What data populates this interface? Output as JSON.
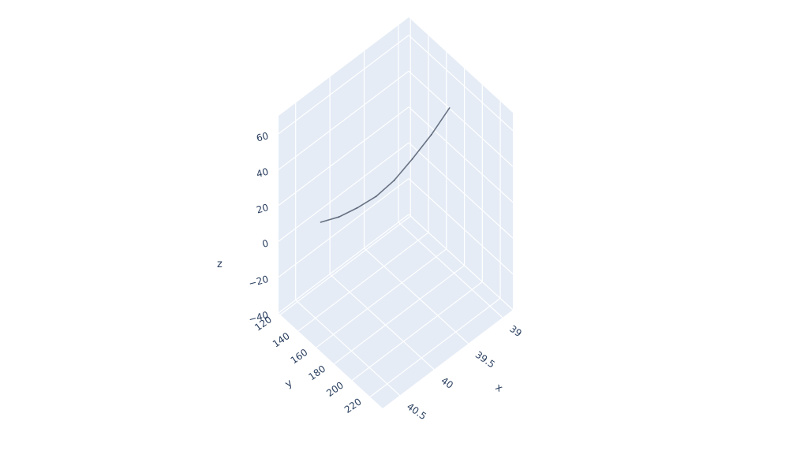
{
  "chart_data": {
    "type": "scatter3d",
    "title": "",
    "axes": {
      "x": {
        "label": "x",
        "ticks": [
          39,
          39.5,
          40,
          40.5
        ],
        "tick_labels": [
          "39",
          "39.5",
          "40",
          "40.5"
        ],
        "range": [
          38.85,
          40.75
        ]
      },
      "y": {
        "label": "y",
        "ticks": [
          120,
          140,
          160,
          180,
          200,
          220
        ],
        "tick_labels": [
          "120",
          "140",
          "160",
          "180",
          "200",
          "220"
        ],
        "range": [
          118,
          234
        ]
      },
      "z": {
        "label": "z",
        "ticks": [
          -40,
          -20,
          0,
          20,
          40,
          60
        ],
        "tick_labels": [
          "−40",
          "−20",
          "0",
          "20",
          "40",
          "60"
        ],
        "range": [
          -40,
          70
        ]
      }
    },
    "series": [
      {
        "x": [
          40.2,
          40.04,
          39.88,
          39.72,
          39.56,
          39.4,
          39.24,
          39.08
        ],
        "y": [
          123,
          131,
          139,
          148,
          156,
          164,
          173,
          181
        ],
        "z": [
          -3,
          -1,
          3,
          9,
          17,
          28,
          41,
          55
        ]
      }
    ],
    "grid": true,
    "background": "#e5ecf6",
    "marker_color": "#3d4a5c"
  }
}
